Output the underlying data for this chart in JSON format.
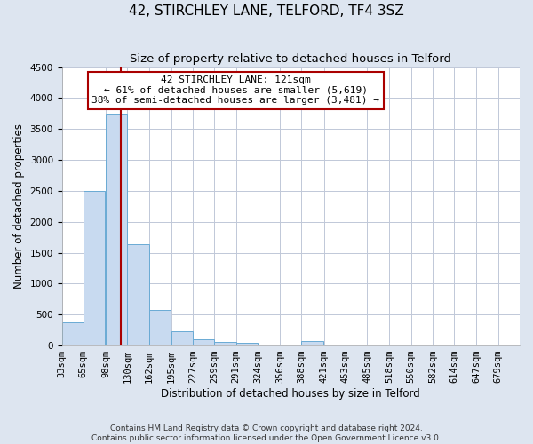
{
  "title": "42, STIRCHLEY LANE, TELFORD, TF4 3SZ",
  "subtitle": "Size of property relative to detached houses in Telford",
  "xlabel": "Distribution of detached houses by size in Telford",
  "ylabel": "Number of detached properties",
  "footer_line1": "Contains HM Land Registry data © Crown copyright and database right 2024.",
  "footer_line2": "Contains public sector information licensed under the Open Government Licence v3.0.",
  "bin_labels": [
    "33sqm",
    "65sqm",
    "98sqm",
    "130sqm",
    "162sqm",
    "195sqm",
    "227sqm",
    "259sqm",
    "291sqm",
    "324sqm",
    "356sqm",
    "388sqm",
    "421sqm",
    "453sqm",
    "485sqm",
    "518sqm",
    "550sqm",
    "582sqm",
    "614sqm",
    "647sqm",
    "679sqm"
  ],
  "bin_edges": [
    33,
    65,
    98,
    130,
    162,
    195,
    227,
    259,
    291,
    324,
    356,
    388,
    421,
    453,
    485,
    518,
    550,
    582,
    614,
    647,
    679
  ],
  "bar_values": [
    370,
    2500,
    3750,
    1640,
    580,
    225,
    105,
    60,
    40,
    0,
    0,
    75,
    0,
    0,
    0,
    0,
    0,
    0,
    0,
    0
  ],
  "bar_color": "#c8daf0",
  "bar_edgecolor": "#6aaad4",
  "property_size": 121,
  "vline_color": "#aa0000",
  "annotation_text": "42 STIRCHLEY LANE: 121sqm\n← 61% of detached houses are smaller (5,619)\n38% of semi-detached houses are larger (3,481) →",
  "annotation_box_edgecolor": "#aa0000",
  "annotation_box_facecolor": "#ffffff",
  "ylim": [
    0,
    4500
  ],
  "yticks": [
    0,
    500,
    1000,
    1500,
    2000,
    2500,
    3000,
    3500,
    4000,
    4500
  ],
  "grid_color": "#c0c8d8",
  "bg_color": "#dde5f0",
  "plot_bg_color": "#ffffff",
  "title_fontsize": 11,
  "subtitle_fontsize": 9.5,
  "axis_label_fontsize": 8.5,
  "tick_fontsize": 7.5,
  "footer_fontsize": 6.5
}
